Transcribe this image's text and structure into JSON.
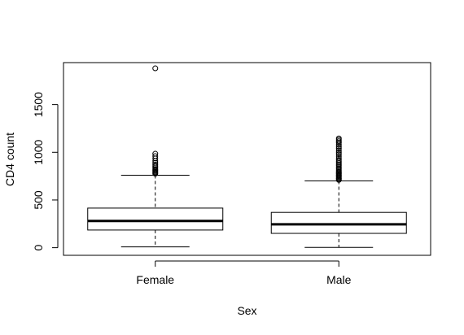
{
  "chart_data": {
    "type": "boxplot",
    "title": "",
    "xlabel": "Sex",
    "ylabel": "CD4 count",
    "ylim": [
      -80,
      1940
    ],
    "y_ticks": [
      0,
      500,
      1000,
      1500
    ],
    "y_tick_labels": [
      "0",
      "500",
      "1000",
      "1500"
    ],
    "grid": false,
    "legend": "none",
    "categories": [
      "Female",
      "Male"
    ],
    "boxes": [
      {
        "category": "Female",
        "whisker_low": 8,
        "q1": 185,
        "median": 280,
        "q3": 415,
        "whisker_high": 760,
        "outliers": [
          775,
          785,
          795,
          805,
          815,
          825,
          840,
          855,
          870,
          890,
          910,
          935,
          960,
          985,
          1880
        ]
      },
      {
        "category": "Male",
        "whisker_low": 3,
        "q1": 150,
        "median": 245,
        "q3": 370,
        "whisker_high": 700,
        "outliers": [
          710,
          720,
          730,
          740,
          750,
          760,
          770,
          780,
          790,
          800,
          815,
          830,
          845,
          860,
          875,
          890,
          905,
          920,
          940,
          960,
          980,
          1000,
          1020,
          1040,
          1060,
          1080,
          1100,
          1115,
          1130,
          1145
        ]
      }
    ]
  }
}
